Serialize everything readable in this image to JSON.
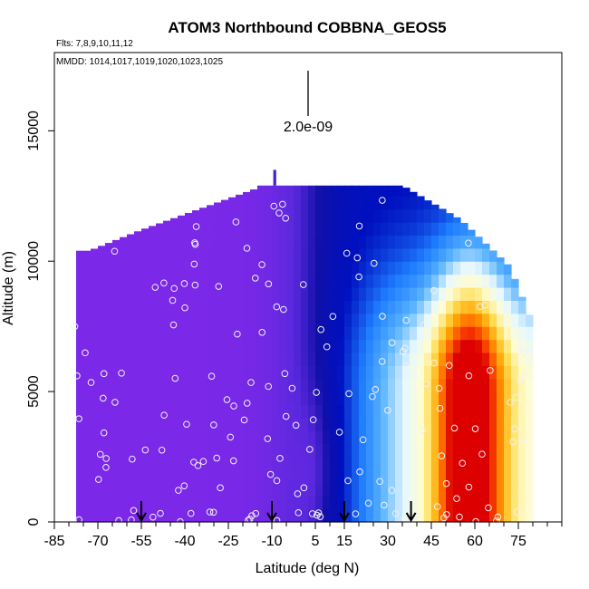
{
  "chart_data": {
    "type": "heatmap",
    "title": "ATOM3 Northbound COBBNA_GEOS5",
    "subtitle_flights": "Flts: 7,8,9,10,11,12",
    "subtitle_dates": "MMDD: 1014,1017,1019,1020,1023,1025",
    "xlabel": "Latitude (deg N)",
    "ylabel": "Altitude (m)",
    "xlim": [
      -85,
      90
    ],
    "ylim": [
      0,
      18000
    ],
    "x_ticks": [
      -85,
      -70,
      -55,
      -40,
      -25,
      -10,
      5,
      15,
      30,
      45,
      60,
      75
    ],
    "y_ticks": [
      0,
      5000,
      10000,
      15000
    ],
    "scale_bar_label": "2.0e-09",
    "arrow_latitudes": [
      -55,
      -10,
      15,
      38
    ],
    "color_scale": [
      "#7b28e8",
      "#5a28de",
      "#1010a8",
      "#0010c0",
      "#1e7cff",
      "#5ab4ff",
      "#e6f8ff",
      "#fffcd0",
      "#ffdc50",
      "#ffa000",
      "#ff5000",
      "#dc0000"
    ],
    "grid": false,
    "legend": "none"
  }
}
